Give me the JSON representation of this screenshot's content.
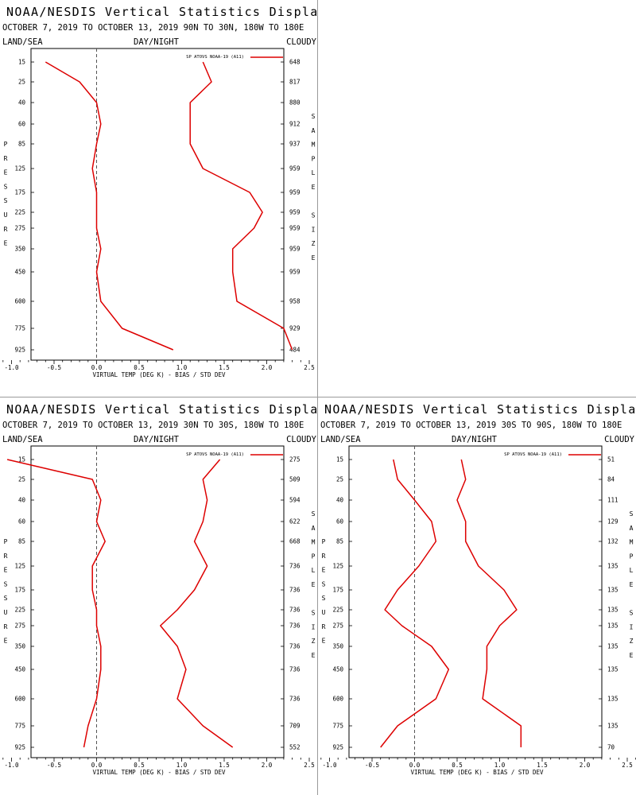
{
  "colors": {
    "series": "#dd0000",
    "zero_line": "#555555",
    "frame": "#000000"
  },
  "chart_data": [
    {
      "type": "line",
      "title": "NOAA/NESDIS Vertical Statistics Display",
      "subtitle": "OCTOBER 7, 2019 TO OCTOBER 13, 2019 90N TO 30N, 180W TO 180E",
      "header": {
        "left": "LAND/SEA",
        "center": "DAY/NIGHT",
        "right": "CLOUDY"
      },
      "ylabel": "PRESSURE",
      "right_label": "SAMPLE SIZE",
      "xlabel": "VIRTUAL TEMP (DEG K) - BIAS / STD DEV",
      "xlim": [
        -1.5,
        4.0
      ],
      "xticks": [
        "-1.0",
        "-0.5",
        "0.0",
        "0.5",
        "1.0",
        "1.5",
        "2.0",
        "2.5",
        "3.0",
        "3.5",
        "4.0"
      ],
      "legend": "SP ATOVS NOAA-19 (A11)",
      "pressure_levels": [
        "15",
        "25",
        "40",
        "60",
        "85",
        "125",
        "175",
        "225",
        "275",
        "350",
        "450",
        "600",
        "775",
        "925"
      ],
      "sample_size": [
        "648",
        "817",
        "880",
        "912",
        "937",
        "959",
        "959",
        "959",
        "959",
        "959",
        "959",
        "958",
        "929",
        "484"
      ],
      "series": [
        {
          "key": "bias",
          "values": [
            -0.6,
            -0.2,
            0.0,
            0.05,
            0.0,
            -0.05,
            0.0,
            0.0,
            0.0,
            0.05,
            0.0,
            0.05,
            0.3,
            0.9
          ]
        },
        {
          "key": "std_dev",
          "values": [
            1.25,
            1.35,
            1.1,
            1.1,
            1.1,
            1.25,
            1.8,
            1.95,
            1.85,
            1.6,
            1.6,
            1.65,
            2.2,
            2.3
          ]
        }
      ]
    },
    {
      "type": "line",
      "title": "NOAA/NESDIS Vertical Statistics Display",
      "subtitle": "OCTOBER 7, 2019 TO OCTOBER 13, 2019 30N TO 30S, 180W TO 180E",
      "header": {
        "left": "LAND/SEA",
        "center": "DAY/NIGHT",
        "right": "CLOUDY"
      },
      "ylabel": "PRESSURE",
      "right_label": "SAMPLE SIZE",
      "xlabel": "VIRTUAL TEMP (DEG K) - BIAS / STD DEV",
      "xlim": [
        -1.5,
        4.0
      ],
      "xticks": [
        "-1.0",
        "-0.5",
        "0.0",
        "0.5",
        "1.0",
        "1.5",
        "2.0",
        "2.5",
        "3.0",
        "3.5",
        "4.0"
      ],
      "legend": "SP ATOVS NOAA-19 (A11)",
      "pressure_levels": [
        "15",
        "25",
        "40",
        "60",
        "85",
        "125",
        "175",
        "225",
        "275",
        "350",
        "450",
        "600",
        "775",
        "925"
      ],
      "sample_size": [
        "275",
        "509",
        "594",
        "622",
        "668",
        "736",
        "736",
        "736",
        "736",
        "736",
        "736",
        "736",
        "709",
        "552"
      ],
      "series": [
        {
          "key": "bias",
          "values": [
            -1.05,
            -0.05,
            0.05,
            0.0,
            0.1,
            -0.05,
            -0.05,
            0.0,
            0.0,
            0.05,
            0.05,
            0.0,
            -0.1,
            -0.15
          ]
        },
        {
          "key": "std_dev",
          "values": [
            1.45,
            1.25,
            1.3,
            1.25,
            1.15,
            1.3,
            1.15,
            0.95,
            0.75,
            0.95,
            1.05,
            0.95,
            1.25,
            1.6
          ]
        }
      ]
    },
    {
      "type": "line",
      "title": "NOAA/NESDIS Vertical Statistics Display",
      "subtitle": "OCTOBER 7, 2019 TO OCTOBER 13, 2019 30S TO 90S, 180W TO 180E",
      "header": {
        "left": "LAND/SEA",
        "center": "DAY/NIGHT",
        "right": "CLOUDY"
      },
      "ylabel": "PRESSURE",
      "right_label": "SAMPLE SIZE",
      "xlabel": "VIRTUAL TEMP (DEG K) - BIAS / STD DEV",
      "xlim": [
        -1.5,
        4.0
      ],
      "xticks": [
        "-1.0",
        "-0.5",
        "0.0",
        "0.5",
        "1.0",
        "1.5",
        "2.0",
        "2.5",
        "3.0",
        "3.5",
        "4.0"
      ],
      "legend": "SP ATOVS NOAA-19 (A11)",
      "pressure_levels": [
        "15",
        "25",
        "40",
        "60",
        "85",
        "125",
        "175",
        "225",
        "275",
        "350",
        "450",
        "600",
        "775",
        "925"
      ],
      "sample_size": [
        "51",
        "84",
        "111",
        "129",
        "132",
        "135",
        "135",
        "135",
        "135",
        "135",
        "135",
        "135",
        "135",
        "70"
      ],
      "series": [
        {
          "key": "bias",
          "values": [
            -0.25,
            -0.2,
            0.0,
            0.2,
            0.25,
            0.05,
            -0.2,
            -0.35,
            -0.15,
            0.2,
            0.4,
            0.25,
            -0.2,
            -0.4
          ]
        },
        {
          "key": "std_dev",
          "values": [
            0.55,
            0.6,
            0.5,
            0.6,
            0.6,
            0.75,
            1.05,
            1.2,
            1.0,
            0.85,
            0.85,
            0.8,
            1.25,
            1.25
          ]
        }
      ]
    }
  ]
}
